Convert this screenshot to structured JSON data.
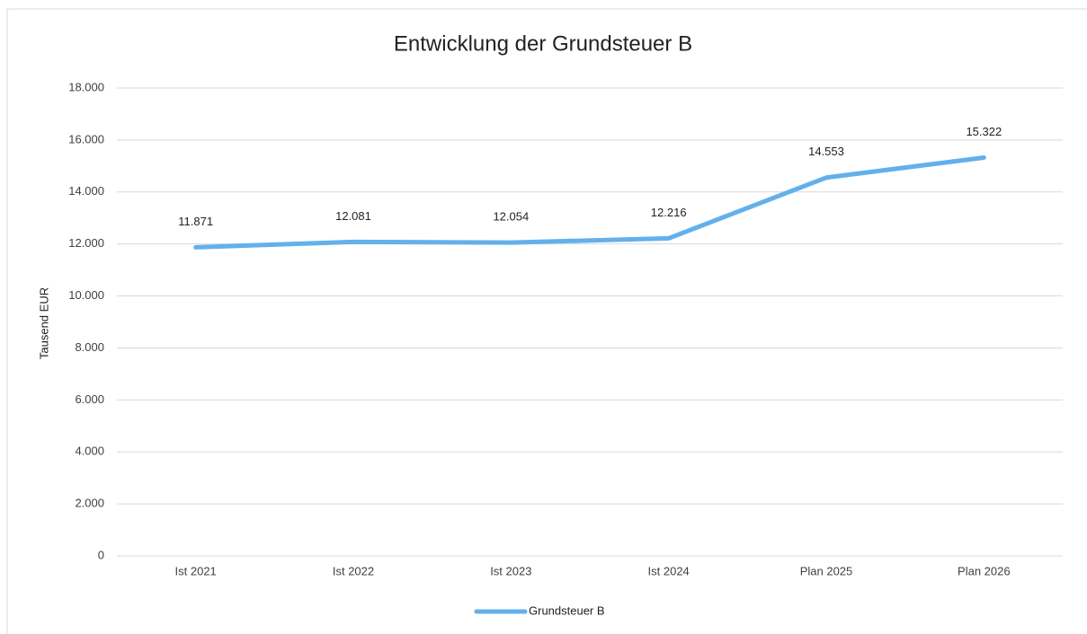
{
  "chart_data": {
    "type": "line",
    "title": "Entwicklung der Grundsteuer B",
    "y_label": "Tausend EUR",
    "categories": [
      "Ist 2021",
      "Ist 2022",
      "Ist 2023",
      "Ist 2024",
      "Plan 2025",
      "Plan 2026"
    ],
    "series": [
      {
        "name": "Grundsteuer B",
        "color": "#62b0ec",
        "values": [
          11871,
          12081,
          12054,
          12216,
          14553,
          15322
        ],
        "value_labels": [
          "11.871",
          "12.081",
          "12.054",
          "12.216",
          "14.553",
          "15.322"
        ]
      }
    ],
    "ylim": [
      0,
      18000
    ],
    "yticks": [
      0,
      {
        "value": 2000,
        "label": "2.000"
      },
      {
        "value": 4000,
        "label": "4.000"
      },
      {
        "value": 6000,
        "label": "6.000"
      },
      {
        "value": 8000,
        "label": "8.000"
      },
      {
        "value": 10000,
        "label": "10.000"
      },
      {
        "value": 12000,
        "label": "12.000"
      },
      {
        "value": 14000,
        "label": "14.000"
      },
      {
        "value": 16000,
        "label": "16.000"
      },
      {
        "value": 18000,
        "label": "18.000"
      }
    ],
    "grid": true,
    "legend": "bottom"
  }
}
